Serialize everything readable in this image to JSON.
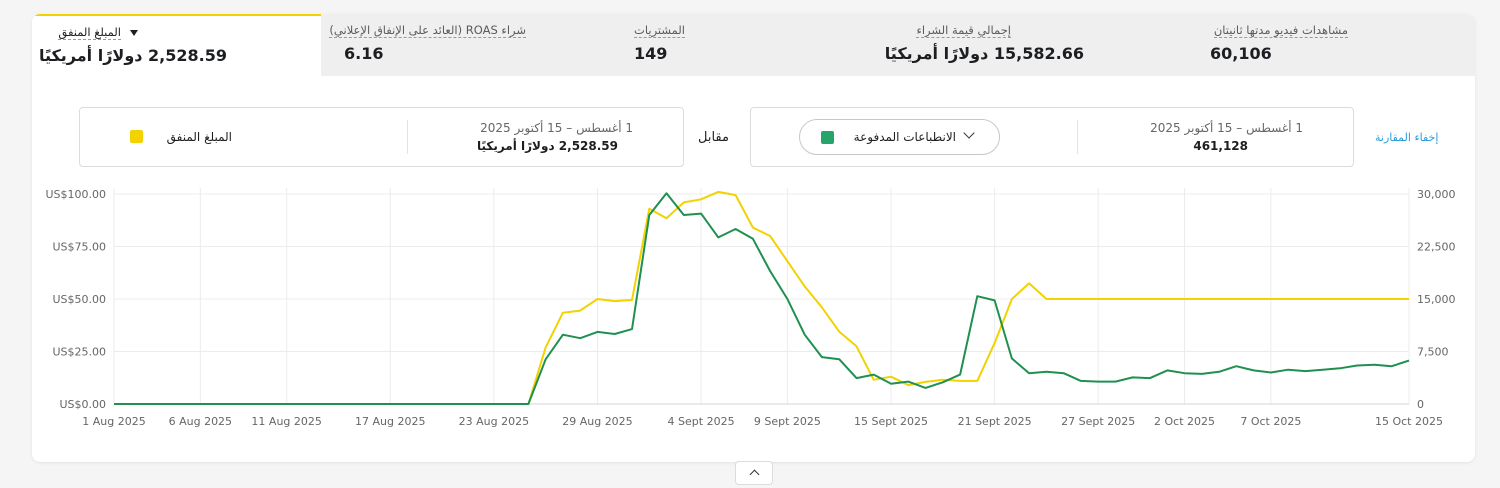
{
  "tabs": [
    {
      "label": "المبلغ المنفق",
      "value": "2,528.59 دولارًا أمريكيًا",
      "active": true
    },
    {
      "label": "شراء ROAS (العائد على الإنفاق الإعلاني)",
      "value": "6.16"
    },
    {
      "label": "المشتريات",
      "value": "149"
    },
    {
      "label": "إجمالي قيمة الشراء",
      "value": "15,582.66 دولارًا أمريكيًا"
    },
    {
      "label": "مشاهدات فيديو مدتها ثانيتان",
      "value": "60,106"
    }
  ],
  "comparison": {
    "hide_label": "إخفاء المقارنة",
    "right_metric": {
      "date_range": "1 أغسطس – 15 أكتوبر 2025",
      "value": "461,128",
      "name": "الانطباعات المدفوعة",
      "color": "#27a46b"
    },
    "vs_label": "مقابل",
    "left_metric": {
      "date_range": "1 أغسطس – 15 أكتوبر 2025",
      "value": "2,528.59 دولارًا أمريكيًا",
      "name": "المبلغ المنفق",
      "color": "#f2d200"
    }
  },
  "chart_data": {
    "type": "line",
    "x": [
      "1 Aug",
      "2 Aug",
      "3 Aug",
      "4 Aug",
      "5 Aug",
      "6 Aug",
      "7 Aug",
      "8 Aug",
      "9 Aug",
      "10 Aug",
      "11 Aug",
      "12 Aug",
      "13 Aug",
      "14 Aug",
      "15 Aug",
      "16 Aug",
      "17 Aug",
      "18 Aug",
      "19 Aug",
      "20 Aug",
      "21 Aug",
      "22 Aug",
      "23 Aug",
      "24 Aug",
      "25 Aug",
      "26 Aug",
      "27 Aug",
      "28 Aug",
      "29 Aug",
      "30 Aug",
      "31 Aug",
      "1 Sept",
      "2 Sept",
      "3 Sept",
      "4 Sept",
      "5 Sept",
      "6 Sept",
      "7 Sept",
      "8 Sept",
      "9 Sept",
      "10 Sept",
      "11 Sept",
      "12 Sept",
      "13 Sept",
      "14 Sept",
      "15 Sept",
      "16 Sept",
      "17 Sept",
      "18 Sept",
      "19 Sept",
      "20 Sept",
      "21 Sept",
      "22 Sept",
      "23 Sept",
      "24 Sept",
      "25 Sept",
      "26 Sept",
      "27 Sept",
      "28 Sept",
      "29 Sept",
      "30 Sept",
      "1 Oct",
      "2 Oct",
      "3 Oct",
      "4 Oct",
      "5 Oct",
      "6 Oct",
      "7 Oct",
      "8 Oct",
      "9 Oct",
      "10 Oct",
      "11 Oct",
      "12 Oct",
      "13 Oct",
      "14 Oct",
      "15 Oct"
    ],
    "x_ticks": [
      "1 Aug 2025",
      "6 Aug 2025",
      "11 Aug 2025",
      "17 Aug 2025",
      "23 Aug 2025",
      "29 Aug 2025",
      "4 Sept 2025",
      "9 Sept 2025",
      "15 Sept 2025",
      "21 Sept 2025",
      "27 Sept 2025",
      "2 Oct 2025",
      "7 Oct 2025",
      "15 Oct 2025"
    ],
    "x_tick_index": [
      0,
      5,
      10,
      16,
      22,
      28,
      34,
      39,
      45,
      51,
      57,
      62,
      67,
      75
    ],
    "y_left_ticks": [
      "US$0.00",
      "US$25.00",
      "US$50.00",
      "US$75.00",
      "US$100.00"
    ],
    "y_right_ticks": [
      "0",
      "7,500",
      "15,000",
      "22,500",
      "30,000"
    ],
    "ylim_left": [
      0,
      100
    ],
    "ylim_right": [
      0,
      30000
    ],
    "grid": true,
    "series": [
      {
        "name": "المبلغ المنفق",
        "axis": "left",
        "color": "#f2d200",
        "values": [
          0,
          0,
          0,
          0,
          0,
          0,
          0,
          0,
          0,
          0,
          0,
          0,
          0,
          0,
          0,
          0,
          0,
          0,
          0,
          0,
          0,
          0,
          0,
          0,
          0,
          27,
          43.5,
          44.5,
          50,
          49,
          49.5,
          93,
          88.5,
          96,
          97.5,
          101,
          99.5,
          84,
          80,
          68,
          56,
          46,
          34.5,
          27.5,
          11.5,
          13,
          9,
          10.5,
          11.5,
          11,
          11,
          29,
          50,
          57.5,
          50,
          50,
          50,
          50,
          50,
          50,
          50,
          50,
          50,
          50,
          50,
          50,
          50,
          50,
          50,
          50,
          50,
          50,
          50,
          50,
          50,
          50
        ]
      },
      {
        "name": "الانطباعات المدفوعة",
        "axis": "right",
        "color": "#1f9050",
        "values": [
          0,
          0,
          0,
          0,
          0,
          0,
          0,
          0,
          0,
          0,
          0,
          0,
          0,
          0,
          0,
          0,
          0,
          0,
          0,
          0,
          0,
          0,
          0,
          0,
          0,
          6400,
          9900,
          9400,
          10300,
          10000,
          10700,
          27000,
          30100,
          27000,
          27200,
          23800,
          25000,
          23600,
          19000,
          15000,
          9900,
          6700,
          6400,
          3700,
          4200,
          2900,
          3200,
          2300,
          3100,
          4200,
          15400,
          14800,
          6500,
          4400,
          4600,
          4400,
          3300,
          3200,
          3200,
          3800,
          3700,
          4800,
          4400,
          4300,
          4600,
          5400,
          4800,
          4500,
          4900,
          4700,
          4900,
          5100,
          5500,
          5600,
          5400,
          6200
        ]
      }
    ]
  }
}
